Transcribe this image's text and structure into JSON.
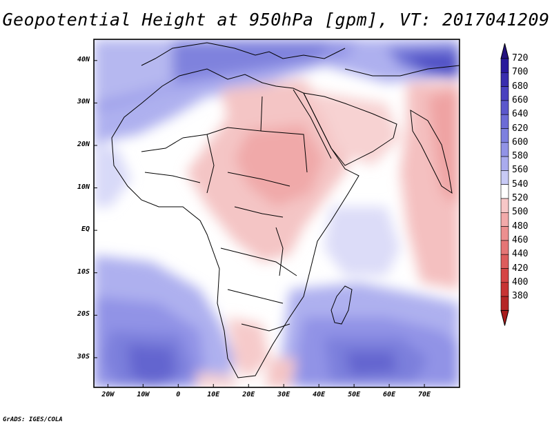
{
  "title": "Geopotential Height at 950hPa [gpm], VT: 2017041209",
  "lat_labels": [
    "40N",
    "30N",
    "20N",
    "10N",
    "EQ",
    "10S",
    "20S",
    "30S"
  ],
  "lon_labels": [
    "20W",
    "10W",
    "0",
    "10E",
    "20E",
    "30E",
    "40E",
    "50E",
    "60E",
    "70E"
  ],
  "lat_values": [
    40,
    30,
    20,
    10,
    0,
    -10,
    -20,
    -30
  ],
  "lon_values": [
    -20,
    -10,
    0,
    10,
    20,
    30,
    40,
    50,
    60,
    70
  ],
  "colorbar": {
    "labels": [
      "720",
      "700",
      "680",
      "660",
      "640",
      "620",
      "600",
      "580",
      "560",
      "540",
      "520",
      "500",
      "480",
      "460",
      "440",
      "420",
      "400",
      "380"
    ],
    "colors": [
      "#2a1a9c",
      "#3a2eae",
      "#4a42bf",
      "#5b57cc",
      "#6c6bd6",
      "#7d80df",
      "#9193e6",
      "#a9abee",
      "#c8caf5",
      "#ffffff",
      "#f7c7c7",
      "#f2aaaa",
      "#ec8f8f",
      "#e57575",
      "#dd5c5c",
      "#d54545",
      "#c73333",
      "#b52525"
    ],
    "top_triangle": "#25127f",
    "bottom_triangle": "#a81c1c"
  },
  "credit": "GrADS: IGES/COLA"
}
